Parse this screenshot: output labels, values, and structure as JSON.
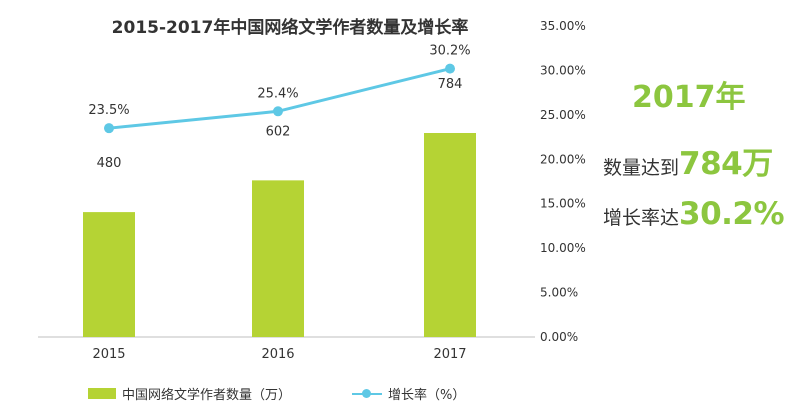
{
  "chart_data": {
    "type": "bar",
    "title": "2015-2017年中国网络文学作者数量及增长率",
    "categories": [
      "2015",
      "2016",
      "2017"
    ],
    "series": [
      {
        "name": "中国网络文学作者数量（万）",
        "type": "bar",
        "values": [
          480,
          602,
          784
        ],
        "labels": [
          "480",
          "602",
          "784"
        ],
        "color": "#b5d334"
      },
      {
        "name": "增长率（%）",
        "type": "line",
        "axis": "right",
        "values": [
          23.5,
          25.4,
          30.2
        ],
        "labels": [
          "23.5%",
          "25.4%",
          "30.2%"
        ],
        "color": "#5ec8e5"
      }
    ],
    "y_right": {
      "ticks": [
        "35.00%",
        "30.00%",
        "25.00%",
        "20.00%",
        "15.00%",
        "10.00%",
        "5.00%",
        "0.00%"
      ],
      "ylim": [
        0,
        35
      ]
    },
    "legend_position": "bottom"
  },
  "callout": {
    "year": "2017年",
    "line2_prefix": "数量达到",
    "line2_value": "784万",
    "line3_prefix": "增长率达",
    "line3_value": "30.2%"
  },
  "legend": {
    "bar_label": "中国网络文学作者数量（万）",
    "line_label": "增长率（%）"
  }
}
